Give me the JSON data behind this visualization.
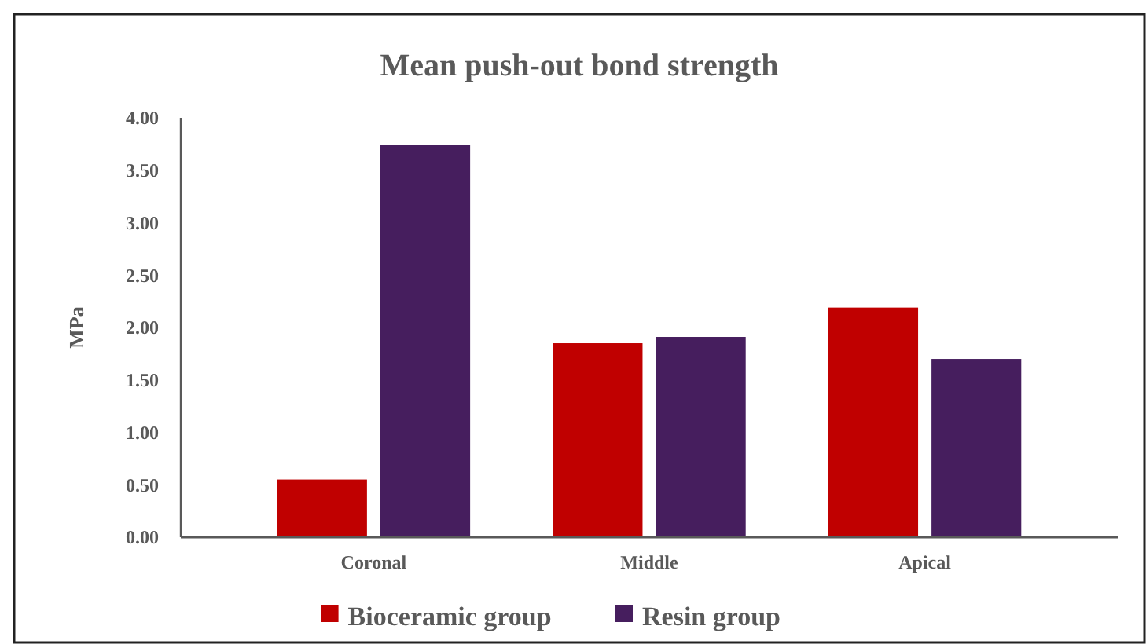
{
  "chart_data": {
    "type": "bar",
    "title": "Mean push-out bond strength",
    "ylabel": "MPa",
    "categories": [
      "Coronal",
      "Middle",
      "Apical"
    ],
    "series": [
      {
        "name": "Bioceramic group",
        "color": "#c00000",
        "values": [
          0.55,
          1.85,
          2.19
        ]
      },
      {
        "name": "Resin group",
        "color": "#461e5e",
        "values": [
          3.74,
          1.91,
          1.7
        ]
      }
    ],
    "ylim": [
      0,
      4
    ],
    "yticks": [
      {
        "value": 0,
        "label": "0.00"
      },
      {
        "value": 0.5,
        "label": "0.50"
      },
      {
        "value": 1,
        "label": "1.00"
      },
      {
        "value": 1.5,
        "label": "1.50"
      },
      {
        "value": 2,
        "label": "2.00"
      },
      {
        "value": 2.5,
        "label": "2.50"
      },
      {
        "value": 3,
        "label": "3.00"
      },
      {
        "value": 3.5,
        "label": "3.50"
      },
      {
        "value": 4,
        "label": "4.00"
      }
    ],
    "grid": false,
    "legend": "bottom"
  }
}
